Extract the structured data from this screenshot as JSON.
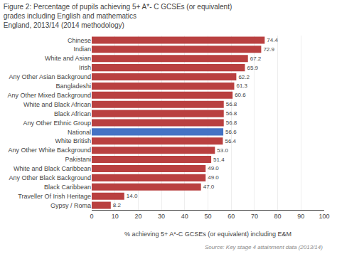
{
  "chart_data": {
    "type": "bar",
    "orientation": "horizontal",
    "title": "Figure 2: Percentage of pupils achieving 5+ A*- C GCSEs (or equivalent) grades including English and mathematics",
    "subtitle": "England, 2013/14 (2014 methodology)",
    "categories": [
      "Chinese",
      "Indian",
      "White and Asian",
      "Irish",
      "Any Other Asian Background",
      "Bangladeshi",
      "Any Other Mixed Background",
      "White and Black African",
      "Black African",
      "Any Other Ethnic Group",
      "National",
      "White British",
      "Any Other White Background",
      "Pakistani",
      "White and Black Caribbean",
      "Any Other Black Background",
      "Black Caribbean",
      "Traveller Of Irish Heritage",
      "Gypsy / Roma"
    ],
    "values": [
      74.4,
      72.9,
      67.2,
      65.9,
      62.2,
      61.3,
      60.6,
      56.8,
      56.8,
      56.8,
      56.6,
      56.4,
      53.0,
      51.4,
      49.0,
      49.0,
      47.0,
      14.0,
      8.2
    ],
    "value_labels": [
      "74.4",
      "72.9",
      "67.2",
      "65.9",
      "62.2",
      "61.3",
      "60.6",
      "56.8",
      "56.8",
      "56.8",
      "56.6",
      "56.4",
      "53.0",
      "51.4",
      "49.0",
      "49.0",
      "47.0",
      "14.0",
      "8.2"
    ],
    "colors": [
      "#b94040",
      "#b94040",
      "#b94040",
      "#b94040",
      "#b94040",
      "#b94040",
      "#b94040",
      "#b94040",
      "#b94040",
      "#b94040",
      "#4472c4",
      "#b94040",
      "#b94040",
      "#b94040",
      "#b94040",
      "#b94040",
      "#b94040",
      "#b94040",
      "#b94040"
    ],
    "xlabel": "% achieving 5+ A*-C GCSEs (or equivalent) including E&M",
    "xlim": [
      0,
      100
    ],
    "xticks": [
      0,
      10,
      20,
      30,
      40,
      50,
      60,
      70,
      80,
      90,
      100
    ],
    "grid": true,
    "data_labels": true,
    "annotations": [
      "Source: Key stage 4 attainment data (2013/14)"
    ]
  }
}
